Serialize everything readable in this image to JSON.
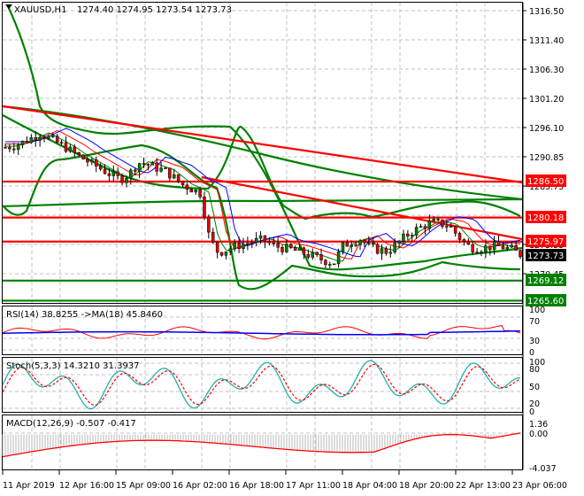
{
  "chart_data": [
    {
      "type": "candlestick",
      "title": "XAUUSD,H1",
      "ohlc_header": {
        "open": "1274.40",
        "high": "1274.95",
        "low": "1273.54",
        "close": "1273.73"
      },
      "y_axis_ticks": [
        "1316.50",
        "1311.40",
        "1306.30",
        "1301.20",
        "1296.10",
        "1290.85",
        "1285.75",
        "1280.18",
        "1275.55",
        "1270.45",
        "1265.35"
      ],
      "ylim": [
        1264.5,
        1318
      ],
      "x_axis_ticks": [
        "11 Apr 2019",
        "12 Apr 16:00",
        "15 Apr 09:00",
        "16 Apr 02:00",
        "16 Apr 18:00",
        "17 Apr 11:00",
        "18 Apr 04:00",
        "18 Apr 20:00",
        "22 Apr 13:00",
        "23 Apr 06:00"
      ],
      "horizontal_levels": [
        {
          "value": "1286.50",
          "color": "#ff0000",
          "label_bg": "#ff0000"
        },
        {
          "value": "1280.18",
          "color": "#ff0000",
          "label_bg": "#ff0000"
        },
        {
          "value": "1275.97",
          "color": "#ff0000",
          "label_bg": "#ff0000"
        },
        {
          "value": "1269.12",
          "color": "#008000",
          "label_bg": "#008000"
        },
        {
          "value": "1265.60",
          "color": "#008000",
          "label_bg": "#008000"
        }
      ],
      "current_price": {
        "value": "1273.73",
        "label_bg": "#000000"
      },
      "close_series_approx": [
        1292.5,
        1292.8,
        1293.4,
        1294.2,
        1294.9,
        1294.0,
        1293.2,
        1292.3,
        1291.2,
        1290.3,
        1289.4,
        1288.5,
        1287.6,
        1286.9,
        1287.9,
        1289.8,
        1289.5,
        1288.9,
        1288.4,
        1287.2,
        1285.9,
        1285.2,
        1284.4,
        1276.5,
        1274.0,
        1274.6,
        1275.2,
        1275.6,
        1276.0,
        1276.3,
        1275.4,
        1274.9,
        1274.7,
        1274.2,
        1273.7,
        1273.2,
        1272.6,
        1272.2,
        1275.2,
        1275.9,
        1276.4,
        1275.0,
        1274.5,
        1274.2,
        1275.4,
        1276.8,
        1277.9,
        1278.6,
        1279.4,
        1279.1,
        1278.8,
        1276.9,
        1275.3,
        1274.7,
        1274.9,
        1275.2,
        1275.0,
        1274.6,
        1273.7
      ],
      "series": [
        {
          "name": "Price candles",
          "colors": {
            "up": "#008000",
            "down": "#ff0000",
            "wick": "#000000"
          }
        },
        {
          "name": "MA fast (green thin)",
          "color": "#008000"
        },
        {
          "name": "MA mid (red thin)",
          "color": "#ff0000"
        },
        {
          "name": "MA slow (blue thin)",
          "color": "#0000ff"
        },
        {
          "name": "Bollinger / envelope bands",
          "color": "#008000"
        },
        {
          "name": "Downtrend lines",
          "color": "#ff0000"
        }
      ]
    },
    {
      "type": "line",
      "title": "RSI(14) 38.8255 ->MA(18) 45.8460",
      "y_axis_ticks": [
        "100",
        "70",
        "30",
        "0"
      ],
      "ylim": [
        0,
        100
      ],
      "series": [
        {
          "name": "RSI(14)",
          "color": "#ff0000",
          "last": 38.8255
        },
        {
          "name": "MA(18)",
          "color": "#0000ff",
          "last": 45.846
        }
      ]
    },
    {
      "type": "line",
      "title": "Stoch(5,3,3) 14.3210 31.3937",
      "y_axis_ticks": [
        "100",
        "80",
        "50",
        "20",
        "0"
      ],
      "ylim": [
        0,
        100
      ],
      "series": [
        {
          "name": "%K",
          "color": "#20b2aa",
          "last": 14.321
        },
        {
          "name": "%D",
          "color": "#ff0000",
          "style": "dashed",
          "last": 31.3937
        }
      ]
    },
    {
      "type": "bar",
      "title": "MACD(12,26,9) -0.507 -0.417",
      "y_axis_ticks": [
        "1.36",
        "0.00",
        "-4.037"
      ],
      "ylim": [
        -4.037,
        1.36
      ],
      "series": [
        {
          "name": "MACD histogram",
          "color": "#c0c0c0",
          "last": -0.507
        },
        {
          "name": "Signal",
          "color": "#ff0000",
          "last": -0.417
        }
      ]
    }
  ],
  "main": {
    "symbol_label": "XAUUSD,H1",
    "ohlc_text": "1274.40 1274.95 1273.54 1273.73",
    "price_ticks": [
      {
        "label": "1316.50",
        "y": 12
      },
      {
        "label": "1311.40",
        "y": 45
      },
      {
        "label": "1306.30",
        "y": 78
      },
      {
        "label": "1301.20",
        "y": 111
      },
      {
        "label": "1296.10",
        "y": 144
      },
      {
        "label": "1290.85",
        "y": 177
      },
      {
        "label": "1285.75",
        "y": 210
      },
      {
        "label": "1275.55",
        "y": 276
      },
      {
        "label": "1270.45",
        "y": 309
      }
    ],
    "level_tags": [
      {
        "label": "1286.50",
        "y": 204,
        "bg": "#ff0000"
      },
      {
        "label": "1280.18",
        "y": 245,
        "bg": "#ff0000"
      },
      {
        "label": "1275.97",
        "y": 272,
        "bg": "#ff0000"
      },
      {
        "label": "1273.73",
        "y": 288,
        "bg": "#000000"
      },
      {
        "label": "1269.12",
        "y": 316,
        "bg": "#008000"
      },
      {
        "label": "1265.60",
        "y": 339,
        "bg": "#008000"
      }
    ]
  },
  "rsi": {
    "title": "RSI(14) 38.8255  ->MA(18) 45.8460",
    "ticks": [
      "100",
      "70",
      "30",
      "0"
    ]
  },
  "stoch": {
    "title": "Stoch(5,3,3) 14.3210 31.3937",
    "ticks": [
      "100",
      "80",
      "50",
      "20",
      "0"
    ]
  },
  "macd": {
    "title": "MACD(12,26,9) -0.507 -0.417",
    "ticks": [
      "1.36",
      "0.00",
      "-4.037"
    ]
  },
  "time_axis": [
    "11 Apr 2019",
    "12 Apr 16:00",
    "15 Apr 09:00",
    "16 Apr 02:00",
    "16 Apr 18:00",
    "17 Apr 11:00",
    "18 Apr 04:00",
    "18 Apr 20:00",
    "22 Apr 13:00",
    "23 Apr 06:00"
  ]
}
